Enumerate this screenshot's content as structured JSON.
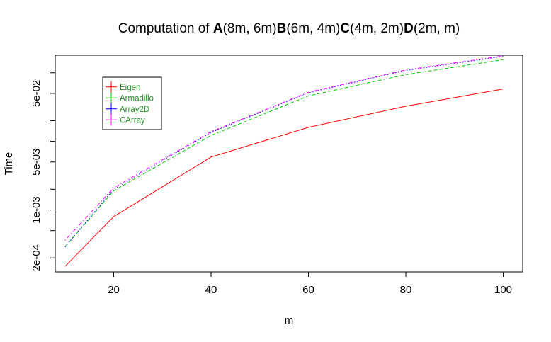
{
  "chart_data": {
    "type": "line",
    "title": {
      "parts": [
        {
          "text": "Computation of ",
          "bold": false
        },
        {
          "text": "A",
          "bold": true
        },
        {
          "text": "(8m, 6m)",
          "bold": false
        },
        {
          "text": "B",
          "bold": true
        },
        {
          "text": "(6m, 4m)",
          "bold": false
        },
        {
          "text": "C",
          "bold": true
        },
        {
          "text": "(4m, 2m)",
          "bold": false
        },
        {
          "text": "D",
          "bold": true
        },
        {
          "text": "(2m, m)",
          "bold": false
        }
      ]
    },
    "xlabel": "m",
    "ylabel": "Time",
    "x_ticks": [
      20,
      40,
      60,
      80,
      100
    ],
    "y_ticks": [
      {
        "value": 0.0002,
        "label": "2e-04"
      },
      {
        "value": 0.001,
        "label": "1e-03"
      },
      {
        "value": 0.005,
        "label": "5e-03"
      },
      {
        "value": 0.05,
        "label": "5e-02"
      }
    ],
    "y_minor_ticks": [
      0.0005,
      0.002,
      0.01,
      0.02,
      0.1
    ],
    "y_scale": "log",
    "xlim": [
      8,
      104
    ],
    "ylim": [
      0.000125,
      0.18
    ],
    "grid": false,
    "legend_position": "top-left",
    "x": [
      10,
      20,
      40,
      60,
      80,
      100
    ],
    "series": [
      {
        "name": "Eigen",
        "color": "#ff0000",
        "dash": "solid",
        "values": [
          0.00015,
          0.0008,
          0.0059,
          0.016,
          0.0325,
          0.058
        ]
      },
      {
        "name": "Armadillo",
        "color": "#00cc00",
        "dash": "dashed",
        "values": [
          0.00029,
          0.0019,
          0.0122,
          0.046,
          0.094,
          0.155
        ]
      },
      {
        "name": "Array2D",
        "color": "#0000ff",
        "dash": "dotted",
        "values": [
          0.00029,
          0.002,
          0.0135,
          0.051,
          0.108,
          0.173
        ]
      },
      {
        "name": "CArray",
        "color": "#ff00ff",
        "dash": "dotdash",
        "values": [
          0.00036,
          0.0021,
          0.0138,
          0.052,
          0.11,
          0.176
        ]
      }
    ]
  }
}
